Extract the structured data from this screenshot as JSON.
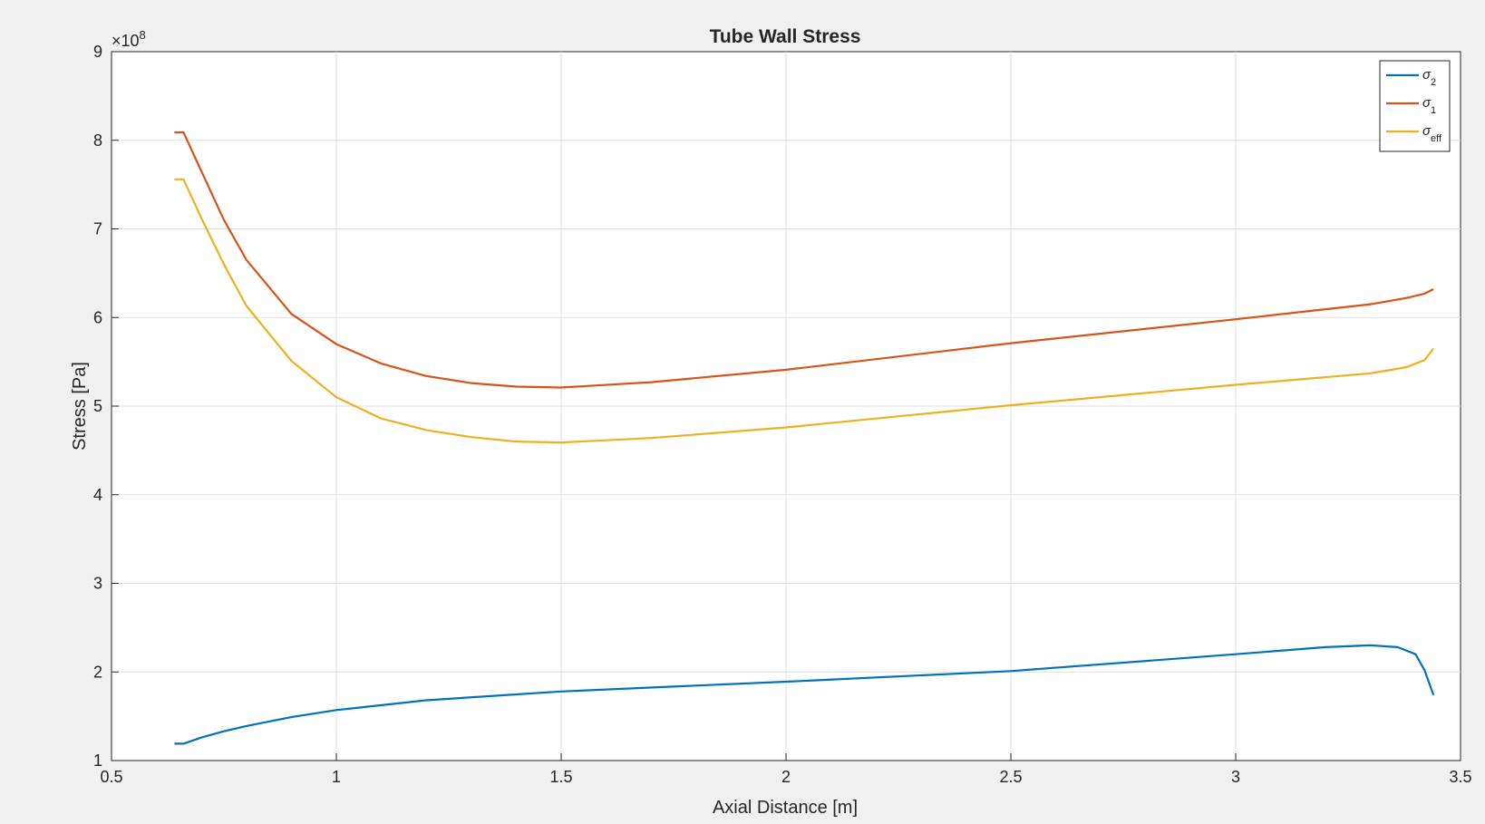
{
  "chart_data": {
    "type": "line",
    "title": "Tube Wall Stress",
    "xlabel": "Axial Distance [m]",
    "ylabel": "Stress [Pa]",
    "y_exponent_label": "×10",
    "y_exponent": "8",
    "xlim": [
      0.5,
      3.5
    ],
    "ylim": [
      1,
      9
    ],
    "y_scale_factor": 100000000,
    "xticks": [
      "0.5",
      "1",
      "1.5",
      "2",
      "2.5",
      "3",
      "3.5"
    ],
    "yticks": [
      "1",
      "2",
      "3",
      "4",
      "5",
      "6",
      "7",
      "8",
      "9"
    ],
    "grid": true,
    "legend_position": "top-right",
    "series": [
      {
        "name": "σ2",
        "symbol": "σ",
        "subscript": "2",
        "color": "#0072bd",
        "x": [
          0.64,
          0.66,
          0.7,
          0.75,
          0.8,
          0.9,
          1.0,
          1.2,
          1.5,
          2.0,
          2.5,
          3.0,
          3.2,
          3.3,
          3.36,
          3.4,
          3.42,
          3.44
        ],
        "y": [
          1.19,
          1.19,
          1.26,
          1.33,
          1.39,
          1.49,
          1.57,
          1.68,
          1.78,
          1.89,
          2.01,
          2.2,
          2.28,
          2.3,
          2.28,
          2.2,
          2.02,
          1.74
        ]
      },
      {
        "name": "σ1",
        "symbol": "σ",
        "subscript": "1",
        "color": "#d95319",
        "x": [
          0.64,
          0.66,
          0.7,
          0.75,
          0.8,
          0.9,
          1.0,
          1.1,
          1.2,
          1.3,
          1.4,
          1.5,
          1.7,
          2.0,
          2.5,
          3.0,
          3.3,
          3.38,
          3.42,
          3.44
        ],
        "y": [
          8.09,
          8.09,
          7.65,
          7.1,
          6.65,
          6.04,
          5.7,
          5.48,
          5.34,
          5.26,
          5.22,
          5.21,
          5.27,
          5.41,
          5.71,
          5.98,
          6.15,
          6.22,
          6.27,
          6.32
        ]
      },
      {
        "name": "σeff",
        "symbol": "σ",
        "subscript": "eff",
        "color": "#edb120",
        "x": [
          0.64,
          0.66,
          0.7,
          0.75,
          0.8,
          0.9,
          1.0,
          1.1,
          1.2,
          1.3,
          1.4,
          1.5,
          1.7,
          2.0,
          2.5,
          3.0,
          3.3,
          3.38,
          3.42,
          3.44
        ],
        "y": [
          7.56,
          7.56,
          7.12,
          6.6,
          6.13,
          5.51,
          5.1,
          4.86,
          4.73,
          4.65,
          4.6,
          4.59,
          4.64,
          4.76,
          5.01,
          5.24,
          5.37,
          5.44,
          5.52,
          5.65
        ]
      }
    ]
  }
}
